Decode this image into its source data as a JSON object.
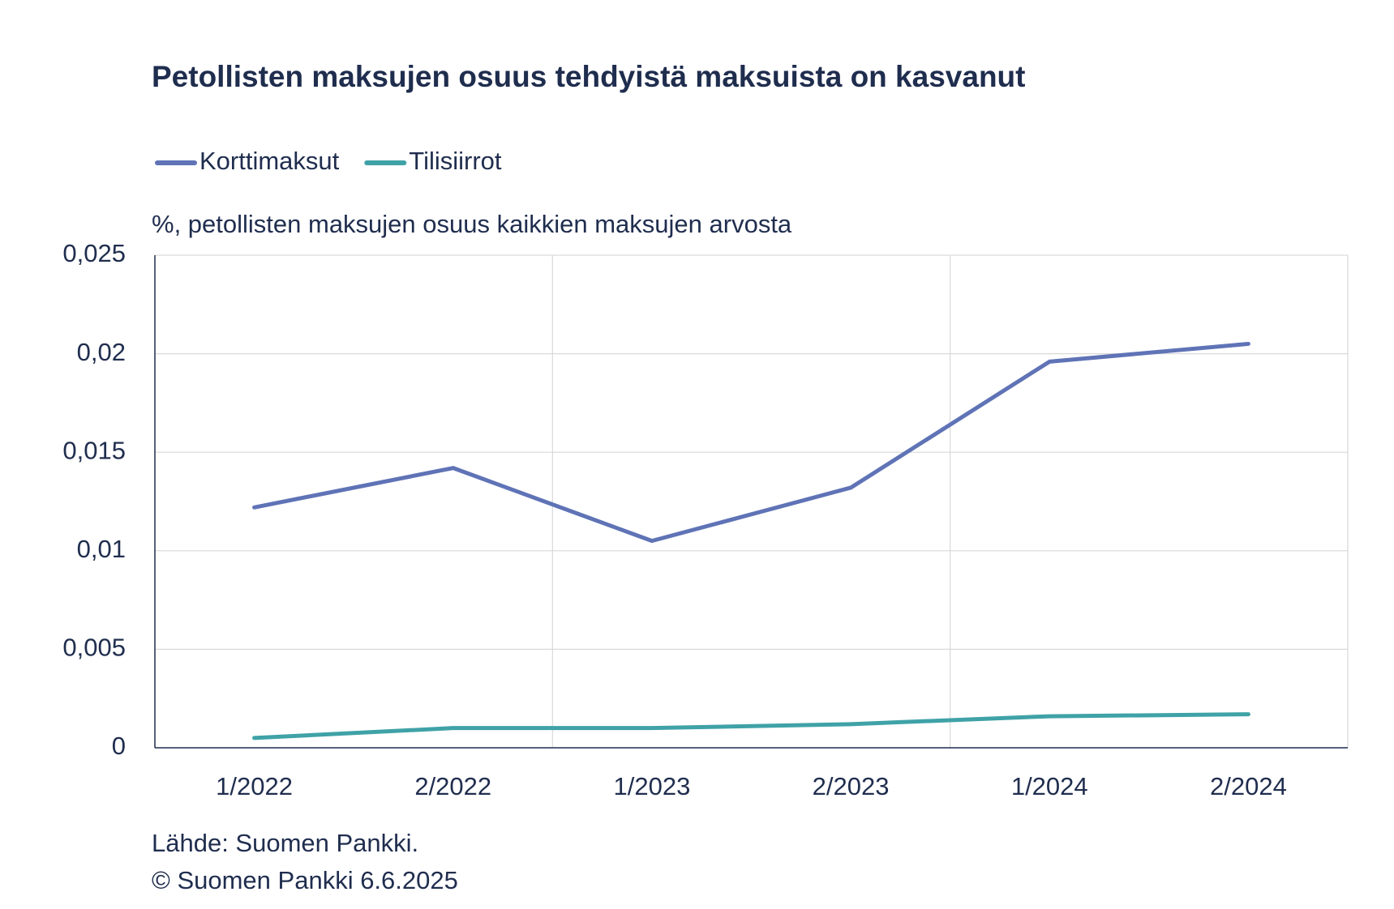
{
  "chart_data": {
    "type": "line",
    "title": "Petollisten maksujen osuus tehdyistä maksuista on kasvanut",
    "y_label": "%, petollisten maksujen osuus kaikkien maksujen arvosta",
    "categories": [
      "1/2022",
      "2/2022",
      "1/2023",
      "2/2023",
      "1/2024",
      "2/2024"
    ],
    "series": [
      {
        "name": "Korttimaksut",
        "color": "#5f73b6",
        "values": [
          0.0122,
          0.0142,
          0.0105,
          0.0132,
          0.0196,
          0.0205
        ]
      },
      {
        "name": "Tilisiirrot",
        "color": "#3fa2a7",
        "values": [
          0.0005,
          0.001,
          0.001,
          0.0012,
          0.0016,
          0.0017
        ]
      }
    ],
    "ylim": [
      0,
      0.025
    ],
    "yticks": [
      0,
      {
        "value": 0.005,
        "label": "0,005"
      },
      {
        "value": 0.01,
        "label": "0,01"
      },
      {
        "value": 0.015,
        "label": "0,015"
      },
      {
        "value": 0.02,
        "label": "0,02"
      },
      {
        "value": 0.025,
        "label": "0,025"
      }
    ],
    "grid": true,
    "legend": "top-left",
    "source": "Lähde: Suomen Pankki.",
    "copyright": "© Suomen Pankki 6.6.2025"
  }
}
